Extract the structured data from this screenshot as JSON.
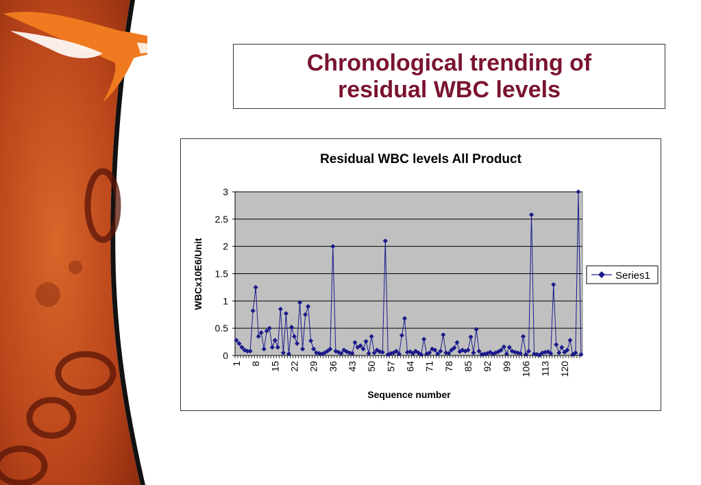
{
  "slide": {
    "title_line1": "Chronological trending of",
    "title_line2": "residual WBC levels"
  },
  "colors": {
    "title": "#7a1430",
    "series": "#1a1a8c",
    "plot_area": "#c0c0c0",
    "art_orange": "#c8501a",
    "logo_orange": "#f07a20"
  },
  "chart_data": {
    "type": "line",
    "title": "Residual WBC levels All Product",
    "xlabel": "Sequence number",
    "ylabel": "WBCx10E6/Unit",
    "ylim": [
      0,
      3
    ],
    "yticks": [
      0,
      0.5,
      1,
      1.5,
      2,
      2.5,
      3
    ],
    "ytick_labels": [
      "0",
      "0.5",
      "1",
      "1.5",
      "2",
      "2.5",
      "3"
    ],
    "xtick_labels": [
      "1",
      "8",
      "15",
      "22",
      "29",
      "36",
      "43",
      "50",
      "57",
      "64",
      "71",
      "78",
      "85",
      "92",
      "99",
      "106",
      "113",
      "120"
    ],
    "grid": true,
    "legend_position": "right",
    "series": [
      {
        "name": "Series1",
        "values": [
          0.28,
          0.22,
          0.15,
          0.1,
          0.08,
          0.08,
          0.82,
          1.25,
          0.35,
          0.42,
          0.12,
          0.45,
          0.5,
          0.15,
          0.28,
          0.15,
          0.85,
          0.05,
          0.77,
          0.03,
          0.52,
          0.35,
          0.22,
          0.97,
          0.12,
          0.75,
          0.9,
          0.27,
          0.12,
          0.05,
          0.04,
          0.03,
          0.05,
          0.08,
          0.12,
          2.0,
          0.08,
          0.06,
          0.04,
          0.1,
          0.07,
          0.05,
          0.04,
          0.24,
          0.15,
          0.18,
          0.12,
          0.26,
          0.04,
          0.35,
          0.05,
          0.1,
          0.07,
          0.06,
          2.1,
          0.02,
          0.04,
          0.05,
          0.08,
          0.03,
          0.37,
          0.68,
          0.06,
          0.07,
          0.04,
          0.08,
          0.05,
          0.02,
          0.3,
          0.03,
          0.05,
          0.12,
          0.1,
          0.03,
          0.08,
          0.38,
          0.05,
          0.04,
          0.1,
          0.14,
          0.24,
          0.07,
          0.1,
          0.08,
          0.1,
          0.34,
          0.05,
          0.48,
          0.08,
          0.02,
          0.03,
          0.04,
          0.06,
          0.03,
          0.05,
          0.07,
          0.1,
          0.16,
          0.03,
          0.15,
          0.08,
          0.06,
          0.05,
          0.04,
          0.35,
          0.02,
          0.08,
          2.58,
          0.03,
          0.02,
          0.01,
          0.05,
          0.06,
          0.07,
          0.04,
          1.3,
          0.2,
          0.05,
          0.15,
          0.06,
          0.1,
          0.28,
          0.02,
          0.05,
          3.0,
          0.02
        ]
      }
    ]
  }
}
